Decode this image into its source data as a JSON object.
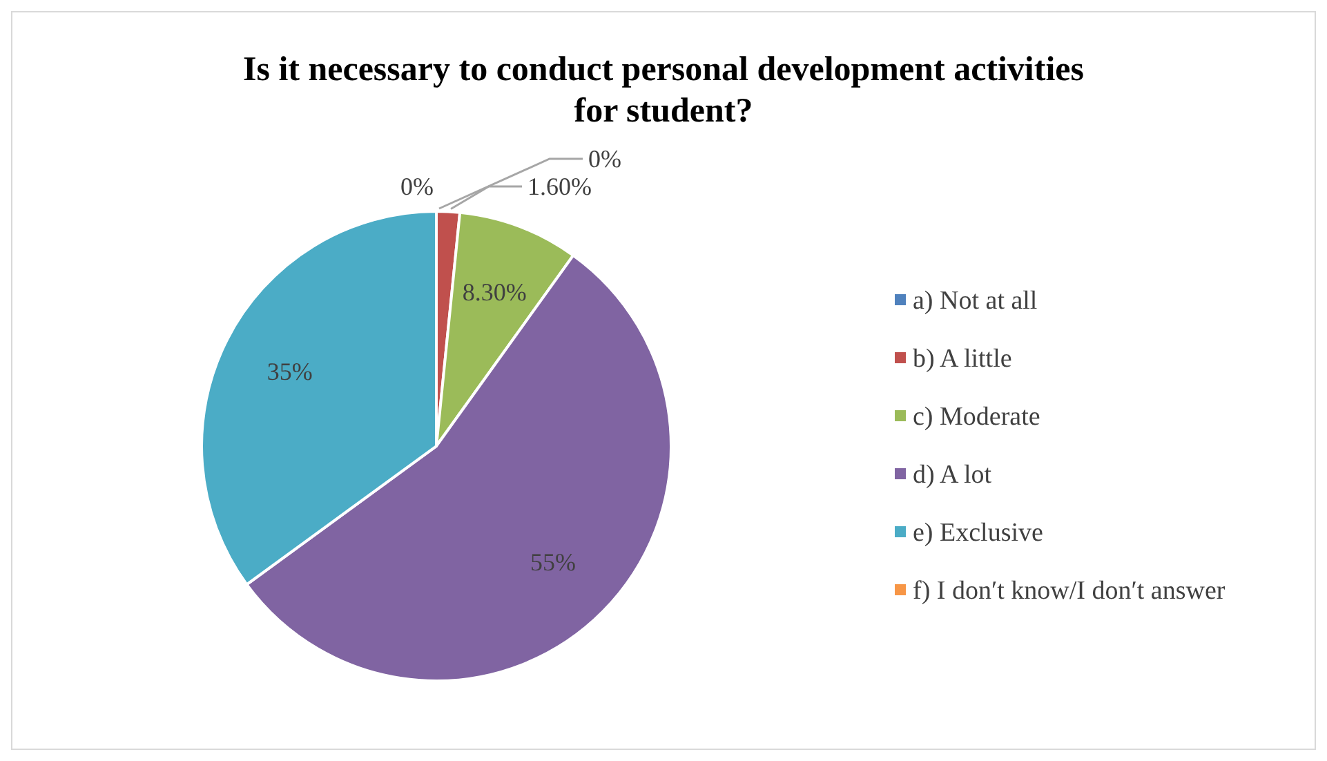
{
  "chart_data": {
    "type": "pie",
    "title": "Is it necessary to conduct personal development activities for student?",
    "categories": [
      "a) Not at all",
      "b) A little",
      "c) Moderate",
      "d) A lot",
      "e) Exclusive",
      "f) I don′t know/I don′t answer"
    ],
    "values": [
      0,
      1.6,
      8.3,
      55,
      35,
      0
    ],
    "colors": [
      "#4f81bd",
      "#c0504d",
      "#9bbb59",
      "#8064a2",
      "#4bacc6",
      "#f79646"
    ],
    "value_labels": [
      "0%",
      "1.60%",
      "8.30%",
      "55%",
      "35%",
      "0%"
    ],
    "legend": "right"
  }
}
